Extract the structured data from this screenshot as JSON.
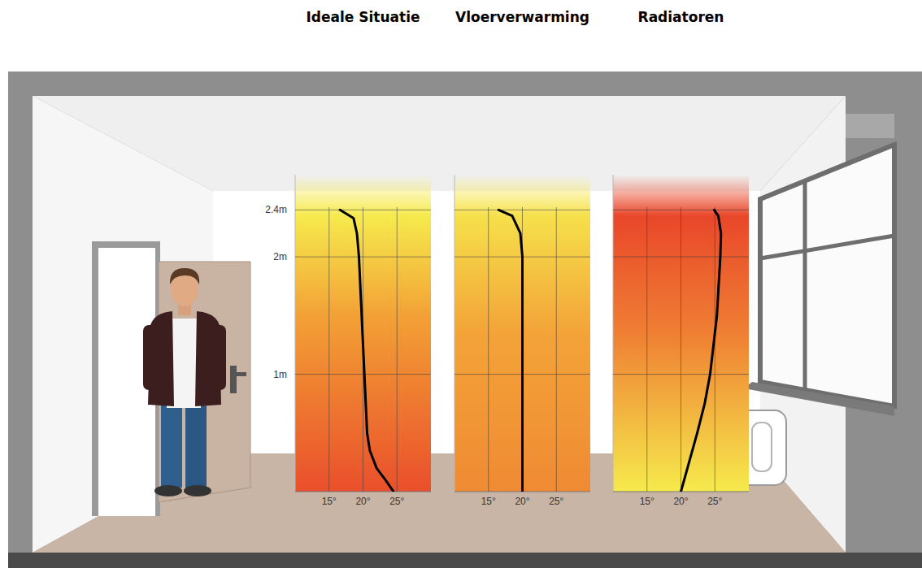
{
  "chart_data": [
    {
      "type": "line",
      "title": "Ideale Situatie",
      "x": [
        24.5,
        23.3,
        22,
        21,
        20.6,
        20.2,
        19.4,
        19.1,
        18.6,
        16.6
      ],
      "values": [
        0,
        0.1,
        0.2,
        0.35,
        0.5,
        1,
        2,
        2.2,
        2.33,
        2.4
      ],
      "color": "#000000",
      "xlim": [
        10,
        30
      ],
      "xticks": [
        {
          "value": 15,
          "label": "15°"
        },
        {
          "value": 20,
          "label": "20°"
        },
        {
          "value": 25,
          "label": "25°"
        }
      ],
      "ylim": [
        0,
        2.7
      ],
      "yticks": [
        {
          "value": 1,
          "label": "1m"
        },
        {
          "value": 2,
          "label": "2m"
        },
        {
          "value": 2.4,
          "label": "2.4m"
        }
      ],
      "grid": true,
      "tick_labels": true
    },
    {
      "type": "line",
      "title": "Vloerverwarming",
      "x": [
        20,
        20,
        20,
        19.7,
        18.5,
        16.5
      ],
      "values": [
        0,
        1,
        2,
        2.2,
        2.35,
        2.4
      ],
      "color": "#000000",
      "xlim": [
        10,
        30
      ],
      "xticks": [
        {
          "value": 15,
          "label": "15°"
        },
        {
          "value": 20,
          "label": "20°"
        },
        {
          "value": 25,
          "label": "25°"
        }
      ],
      "ylim": [
        0,
        2.7
      ],
      "yticks": [
        1,
        2,
        2.4
      ],
      "grid": true,
      "tick_labels": "x"
    },
    {
      "type": "line",
      "title": "Radiatoren",
      "x": [
        20,
        21.2,
        22.4,
        23.5,
        24.3,
        25.3,
        25.8,
        25.9,
        25.5,
        24.9
      ],
      "values": [
        0,
        0.25,
        0.5,
        0.75,
        1,
        1.5,
        2,
        2.2,
        2.35,
        2.4
      ],
      "color": "#000000",
      "xlim": [
        10,
        30
      ],
      "xticks": [
        {
          "value": 15,
          "label": "15°"
        },
        {
          "value": 20,
          "label": "20°"
        },
        {
          "value": 25,
          "label": "25°"
        }
      ],
      "ylim": [
        0,
        2.7
      ],
      "yticks": [
        1,
        2,
        2.4
      ],
      "grid": true,
      "tick_labels": "x"
    }
  ]
}
